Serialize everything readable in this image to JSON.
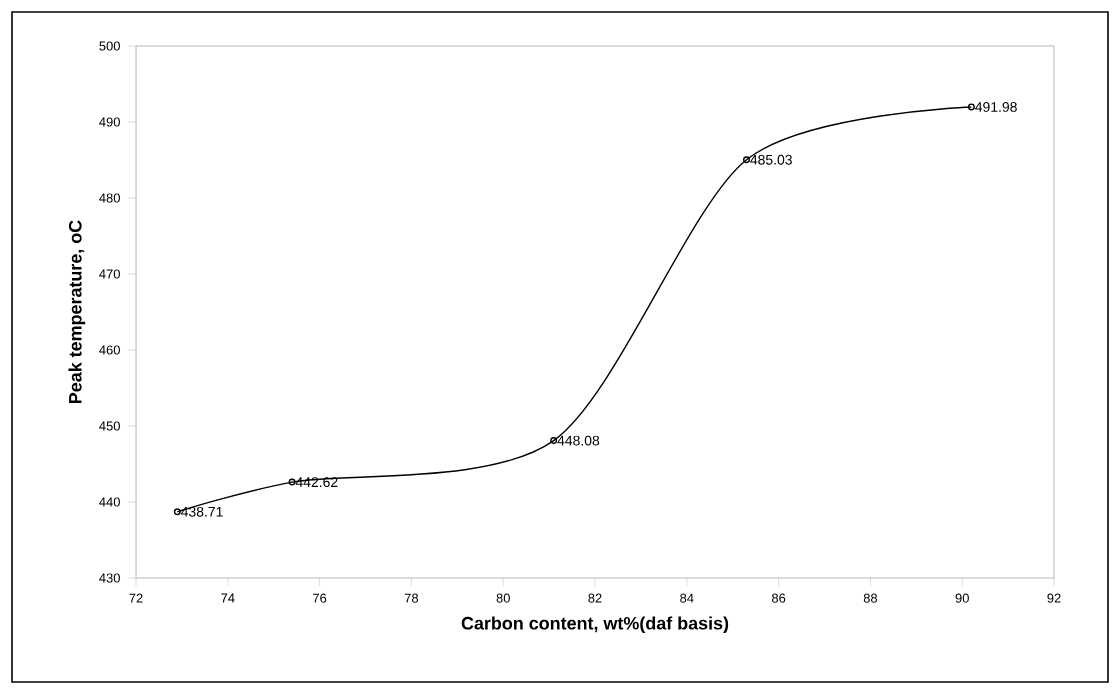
{
  "chart_data": {
    "type": "line",
    "xlabel": "Carbon content, wt%(daf basis)",
    "ylabel": "Peak temperature, oC",
    "x": [
      72.9,
      75.4,
      81.1,
      85.3,
      90.2
    ],
    "values": [
      438.71,
      442.62,
      448.08,
      485.03,
      491.98
    ],
    "color": "#000000",
    "marker": "circle",
    "line_style": "solid",
    "data_labels": true,
    "grid": false,
    "xlim": [
      72,
      92
    ],
    "xticks": [
      72,
      74,
      76,
      78,
      80,
      82,
      84,
      86,
      88,
      90,
      92
    ],
    "ylim": [
      430,
      500
    ],
    "yticks": [
      430,
      440,
      450,
      460,
      470,
      480,
      490,
      500
    ]
  }
}
